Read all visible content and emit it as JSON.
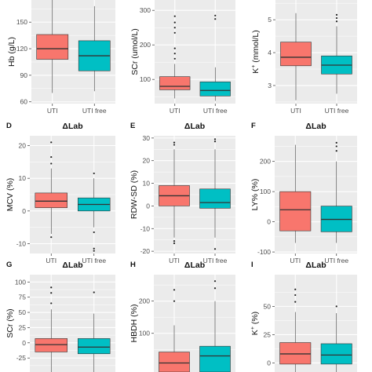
{
  "colors": {
    "uti": "#F8766D",
    "uti_free": "#00BFC4",
    "panel_bg": "#EBEBEB",
    "grid": "#FFFFFF",
    "text": "#333333"
  },
  "chart_data": [
    {
      "letter": "",
      "title": "",
      "type": "box",
      "ylabel_html": "Hb (g/L)",
      "ylabel_main": "Hb (g/L)",
      "ylabel_sup": "",
      "ylabel_rest": "",
      "categories": [
        "UTI",
        "UTI free"
      ],
      "ylim": [
        58,
        175
      ],
      "yticks": [
        60,
        90,
        120,
        150
      ],
      "boxes": [
        {
          "low": 70,
          "q1": 108,
          "median": 120,
          "q3": 136,
          "high": 175,
          "outliers": []
        },
        {
          "low": 72,
          "q1": 95,
          "median": 112,
          "q3": 129,
          "high": 168,
          "outliers": []
        }
      ]
    },
    {
      "letter": "",
      "title": "",
      "type": "box",
      "ylabel_main": "SCr (umol/L)",
      "ylabel_sup": "",
      "ylabel_rest": "",
      "categories": [
        "UTI",
        "UTI free"
      ],
      "ylim": [
        30,
        330
      ],
      "yticks": [
        100,
        200,
        300
      ],
      "boxes": [
        {
          "low": 45,
          "q1": 70,
          "median": 80,
          "q3": 108,
          "high": 145,
          "outliers": [
            160,
            175,
            190,
            235,
            250,
            265,
            283
          ]
        },
        {
          "low": 38,
          "q1": 52,
          "median": 68,
          "q3": 93,
          "high": 135,
          "outliers": [
            275,
            285
          ]
        }
      ]
    },
    {
      "letter": "",
      "title": "",
      "type": "box",
      "ylabel_main": "K",
      "ylabel_sup": "+",
      "ylabel_rest": " (mmol/L)",
      "categories": [
        "UTI",
        "UTI free"
      ],
      "ylim": [
        2.45,
        5.6
      ],
      "yticks": [
        3,
        4,
        5
      ],
      "boxes": [
        {
          "low": 2.55,
          "q1": 3.6,
          "median": 3.86,
          "q3": 4.32,
          "high": 5.2,
          "outliers": []
        },
        {
          "low": 2.75,
          "q1": 3.35,
          "median": 3.62,
          "q3": 3.9,
          "high": 4.8,
          "outliers": [
            4.95,
            5.05,
            5.15
          ]
        }
      ]
    },
    {
      "letter": "D",
      "title": "ΔLab",
      "type": "box",
      "ylabel_main": "MCV (%)",
      "ylabel_sup": "",
      "ylabel_rest": "",
      "categories": [
        "UTI",
        "UTI free"
      ],
      "ylim": [
        -13,
        23
      ],
      "yticks": [
        -10,
        0,
        10,
        20
      ],
      "boxes": [
        {
          "low": -7,
          "q1": 1,
          "median": 3,
          "q3": 5.5,
          "high": 13,
          "outliers": [
            -8,
            14.5,
            16.5,
            21
          ]
        },
        {
          "low": -5,
          "q1": 0,
          "median": 2,
          "q3": 4,
          "high": 10,
          "outliers": [
            -6.5,
            -11.5,
            -12.2,
            11.5
          ]
        }
      ]
    },
    {
      "letter": "E",
      "title": "ΔLab",
      "type": "box",
      "ylabel_main": "RDW-SD (%)",
      "ylabel_sup": "",
      "ylabel_rest": "",
      "categories": [
        "UTI",
        "UTI free"
      ],
      "ylim": [
        -21,
        31
      ],
      "yticks": [
        -20,
        -10,
        0,
        10,
        20,
        30
      ],
      "boxes": [
        {
          "low": -14,
          "q1": 0,
          "median": 4.5,
          "q3": 9,
          "high": 25,
          "outliers": [
            -15.5,
            -16.5,
            27,
            28
          ]
        },
        {
          "low": -14,
          "q1": -1,
          "median": 1.5,
          "q3": 7.5,
          "high": 25,
          "outliers": [
            -19,
            28.5,
            29.5
          ]
        }
      ]
    },
    {
      "letter": "F",
      "title": "ΔLab",
      "type": "box",
      "ylabel_main": "LY% (%)",
      "ylabel_sup": "",
      "ylabel_rest": "",
      "categories": [
        "UTI",
        "UTI free"
      ],
      "ylim": [
        -105,
        285
      ],
      "yticks": [
        -100,
        0,
        100,
        200
      ],
      "boxes": [
        {
          "low": -70,
          "q1": -30,
          "median": 40,
          "q3": 100,
          "high": 255,
          "outliers": []
        },
        {
          "low": -70,
          "q1": -33,
          "median": 8,
          "q3": 52,
          "high": 200,
          "outliers": [
            235,
            250,
            262
          ]
        }
      ]
    },
    {
      "letter": "G",
      "title": "ΔLab",
      "type": "box",
      "ylabel_main": "SCr (%)",
      "ylabel_sup": "",
      "ylabel_rest": "",
      "categories": [
        "UTI",
        "UTI free"
      ],
      "ylim": [
        -48,
        112
      ],
      "yticks": [
        -25,
        0,
        25,
        50,
        75,
        100
      ],
      "boxes": [
        {
          "low": -48,
          "q1": -15,
          "median": -3,
          "q3": 7,
          "high": 55,
          "outliers": [
            65,
            82,
            91
          ]
        },
        {
          "low": -48,
          "q1": -18,
          "median": -7,
          "q3": 7,
          "high": 48,
          "outliers": [
            83
          ]
        }
      ]
    },
    {
      "letter": "H",
      "title": "ΔLab",
      "type": "box",
      "ylabel_main": "HBDH (%)",
      "ylabel_sup": "",
      "ylabel_rest": "",
      "categories": [
        "UTI",
        "UTI free"
      ],
      "ylim": [
        -20,
        282
      ],
      "yticks": [
        100,
        200
      ],
      "boxes": [
        {
          "low": -20,
          "q1": -20,
          "median": 8,
          "q3": 42,
          "high": 125,
          "outliers": [
            200,
            235
          ]
        },
        {
          "low": -20,
          "q1": -20,
          "median": 30,
          "q3": 60,
          "high": 200,
          "outliers": [
            240,
            262
          ]
        }
      ]
    },
    {
      "letter": "I",
      "title": "ΔLab",
      "type": "box",
      "ylabel_main": "K",
      "ylabel_sup": "+",
      "ylabel_rest": " (%)",
      "categories": [
        "UTI",
        "UTI free"
      ],
      "ylim": [
        -8,
        78
      ],
      "yticks": [
        0,
        25,
        50
      ],
      "boxes": [
        {
          "low": -8,
          "q1": -1,
          "median": 8,
          "q3": 18,
          "high": 45,
          "outliers": [
            54,
            60,
            65
          ]
        },
        {
          "low": -8,
          "q1": -1,
          "median": 7,
          "q3": 17,
          "high": 44,
          "outliers": [
            50
          ]
        }
      ]
    }
  ]
}
